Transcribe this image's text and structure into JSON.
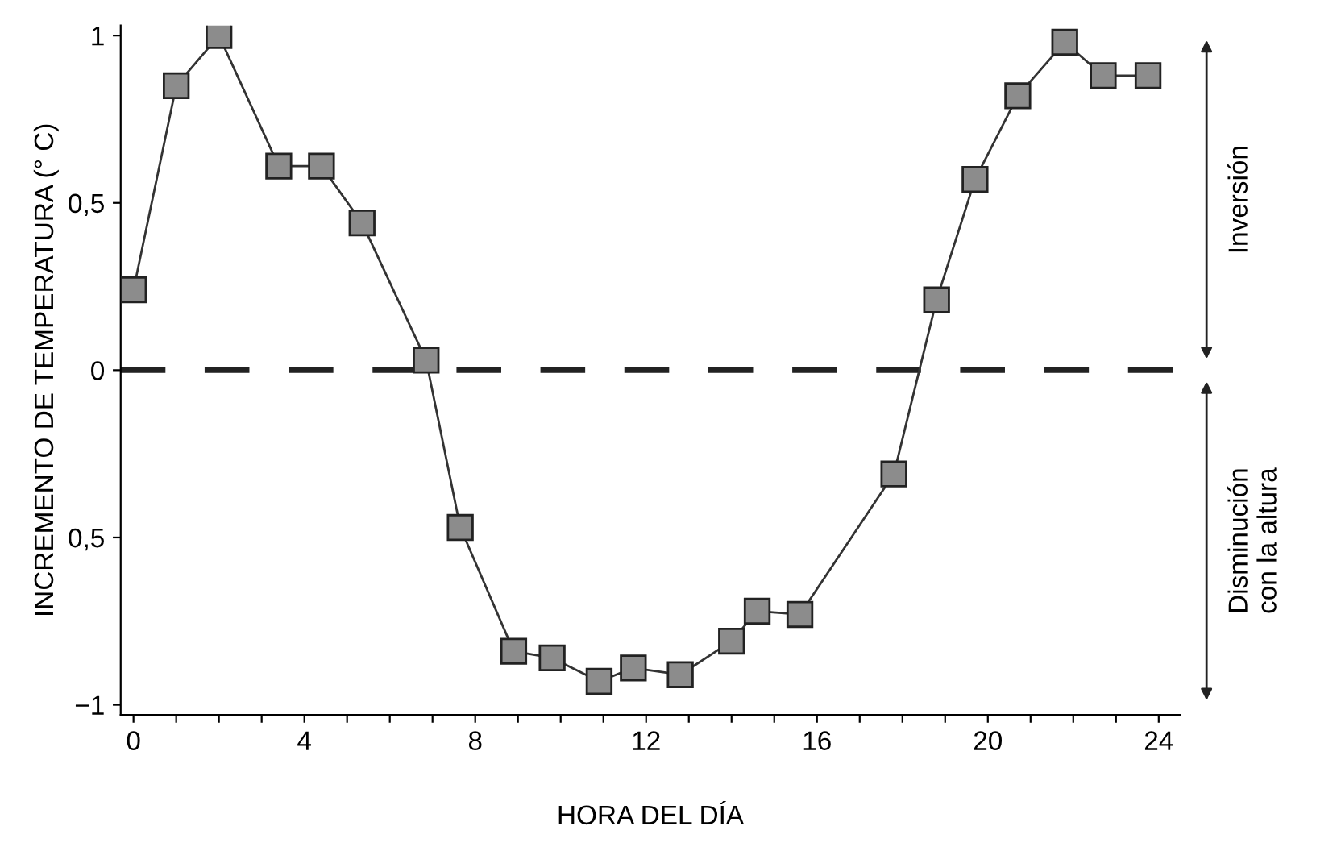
{
  "chart_data": {
    "type": "line",
    "xlabel": "HORA DEL DÍA",
    "ylabel": "INCREMENTO DE TEMPERATURA (° C)",
    "x": [
      0,
      1,
      2,
      3.4,
      4.4,
      5.35,
      6.85,
      7.65,
      8.9,
      9.8,
      10.9,
      11.7,
      12.8,
      14.0,
      14.6,
      15.6,
      17.8,
      18.8,
      19.7,
      20.7,
      21.8,
      22.7,
      23.75
    ],
    "series": [
      {
        "color": "#333333",
        "values": [
          0.24,
          0.85,
          1.0,
          0.61,
          0.61,
          0.44,
          0.03,
          -0.47,
          -0.84,
          -0.86,
          -0.93,
          -0.89,
          -0.91,
          -0.81,
          -0.72,
          -0.73,
          -0.31,
          0.21,
          0.57,
          0.82,
          0.98,
          0.88,
          0.88
        ]
      }
    ],
    "marker": "square",
    "line_style": "solid",
    "grid": false,
    "legend": false,
    "xlim": [
      -0.3,
      24.5
    ],
    "ylim": [
      -1.03,
      1.03
    ],
    "xticks": [
      0,
      {
        "value": 1,
        "label": null
      },
      {
        "value": 2,
        "label": null
      },
      {
        "value": 3,
        "label": null
      },
      4,
      {
        "value": 5,
        "label": null
      },
      {
        "value": 6,
        "label": null
      },
      {
        "value": 7,
        "label": null
      },
      8,
      {
        "value": 9,
        "label": null
      },
      {
        "value": 10,
        "label": null
      },
      {
        "value": 11,
        "label": null
      },
      12,
      {
        "value": 13,
        "label": null
      },
      {
        "value": 14,
        "label": null
      },
      {
        "value": 15,
        "label": null
      },
      16,
      {
        "value": 17,
        "label": null
      },
      {
        "value": 18,
        "label": null
      },
      {
        "value": 19,
        "label": null
      },
      20,
      {
        "value": 21,
        "label": null
      },
      {
        "value": 22,
        "label": null
      },
      {
        "value": 23,
        "label": null
      },
      24
    ],
    "yticks": [
      {
        "value": -1,
        "label": "−1"
      },
      {
        "value": -0.5,
        "label": "0,5"
      },
      0,
      {
        "value": 0.5,
        "label": "0,5"
      },
      1
    ],
    "ref_lines": [
      {
        "axis": "y",
        "value": 0,
        "line_style": "dashed",
        "color": "#222222"
      }
    ],
    "annotations": [
      "Inversión",
      "Disminución\ncon la altura"
    ]
  }
}
